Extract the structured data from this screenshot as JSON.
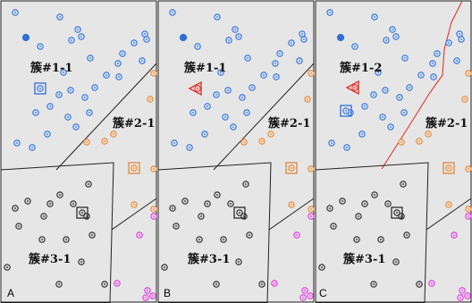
{
  "colors": {
    "panel_bg": "#e6e6e6",
    "border": "#1c1c1c",
    "blue_cluster": "#2f6fd6",
    "blue_fill": "#d7e4fb",
    "orange_cluster": "#e0883a",
    "orange_fill": "#f7dec6",
    "black_cluster": "#2a2a2a",
    "black_fill": "#d6d6d6",
    "magenta_cluster": "#d83bd8",
    "magenta_fill": "#f7d2f7",
    "red_boundary": "#e0322e"
  },
  "panels": [
    {
      "letter": "A",
      "labels": [
        "簇#1-1",
        "簇#2-1",
        "簇#3-1"
      ]
    },
    {
      "letter": "B",
      "labels": [
        "簇#1-1",
        "簇#2-1",
        "簇#3-1"
      ]
    },
    {
      "letter": "C",
      "labels": [
        "簇#1-2",
        "簇#2-1",
        "簇#3-1"
      ]
    }
  ]
}
